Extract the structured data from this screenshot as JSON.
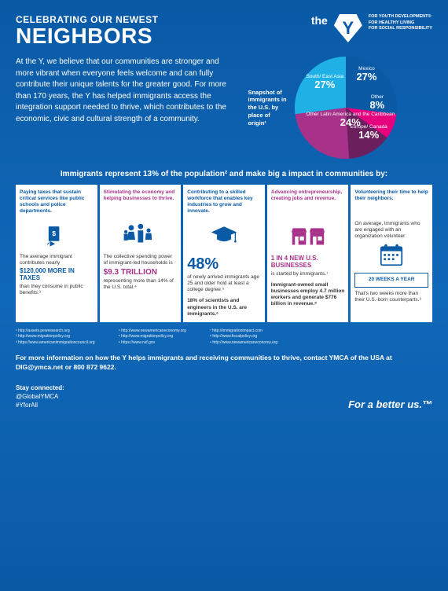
{
  "header": {
    "title_small": "CELEBRATING OUR NEWEST",
    "title_large": "NEIGHBORS",
    "logo_the": "the",
    "taglines": [
      "FOR YOUTH DEVELOPMENT®",
      "FOR HEALTHY LIVING",
      "FOR SOCIAL RESPONSIBILITY"
    ]
  },
  "intro": "At the Y, we believe that our communities are stronger and more vibrant when everyone feels welcome and can fully contribute their unique talents for the greater good. For more than 170 years, the Y has helped immigrants access the integration support needed to thrive, which contributes to the economic, civic and cultural strength of a community.",
  "pie": {
    "label": "Snapshot of immigrants in the U.S. by place of origin¹",
    "slices": [
      {
        "name": "Mexico",
        "pct": "27%",
        "color": "#0a5aa6",
        "angle": 97.2
      },
      {
        "name": "Other",
        "pct": "8%",
        "color": "#e6007e",
        "angle": 28.8
      },
      {
        "name": "Europe/ Canada",
        "pct": "14%",
        "color": "#6b1f5c",
        "angle": 50.4
      },
      {
        "name": "Other Latin America and the Caribbean",
        "pct": "24%",
        "color": "#a8328a",
        "angle": 86.4
      },
      {
        "name": "South/ East Asia",
        "pct": "27%",
        "color": "#1fb1e6",
        "angle": 97.2
      }
    ]
  },
  "subhead": "Immigrants represent 13% of the population² and make big a impact in communities by:",
  "cards": [
    {
      "head_color": "blue",
      "head": "Paying taxes that sustain critical services like public schools and police departments.",
      "icon": "money",
      "body_pre": "The average immigrant contributes nearly",
      "big": "$120,000 MORE IN TAXES",
      "big_color": "blue",
      "body_post": "than they consume in public benefits.³"
    },
    {
      "head_color": "purple",
      "head": "Stimulating the economy and helping businesses to thrive.",
      "icon": "family",
      "body_pre": "The collective spending power of immigrant-led households is",
      "big": "$9.3 TRILLION",
      "big_color": "purple",
      "body_post": "representing more than 14% of the U.S. total.⁴"
    },
    {
      "head_color": "blue",
      "head": "Contributing to a skilled workforce that enables key industries to grow and innovate.",
      "icon": "grad",
      "big": "48%",
      "big_color": "blue",
      "body_post": "of newly arrived immigrants age 25 and older hold at least a college degree.⁵",
      "extra": "18% of scientists and engineers in the U.S. are immigrants.⁶"
    },
    {
      "head_color": "purple",
      "head": "Advancing entrepreneurship, creating jobs and revenue.",
      "icon": "shop",
      "big": "1 IN 4 NEW U.S. BUSINESSES",
      "big_color": "purple",
      "body_post": "is started by immigrants.⁷",
      "extra": "Immigrant-owned small businesses employ 4.7 million workers and generate $776 billion in revenue.⁸"
    },
    {
      "head_color": "blue",
      "head": "Volunteering their time to help their neighbors.",
      "body_pre": "On average, immigrants who are engaged with an organization volunteer",
      "icon": "calendar",
      "box": "20 WEEKS A YEAR",
      "body_post": "That's two weeks more than their U.S.-born counterparts.⁹"
    }
  ],
  "sources": {
    "col1": [
      "¹ http://assets.pewresearch.org",
      "² http://www.migrationpolicy.org",
      "³ https://www.americanimmigrationcouncil.org"
    ],
    "col2": [
      "⁴ http://www.newamericaneconomy.org",
      "⁵ http://www.migrationpolicy.org",
      "⁶ https://www.nsf.gov"
    ],
    "col3": [
      "⁷ http://immigrationimpact.com",
      "⁸ http://www.fiscalpolicy.org",
      "⁹ http://www.newamericaneconomy.org"
    ]
  },
  "footer_info": "For more information on how the Y helps immigrants and receiving communities to thrive, contact YMCA of the USA at DIG@ymca.net or 800 872 9622.",
  "stay": {
    "title": "Stay connected:",
    "handle": "@GlobalYMCA",
    "tag": "#YforAll"
  },
  "better": "For a better us.™"
}
